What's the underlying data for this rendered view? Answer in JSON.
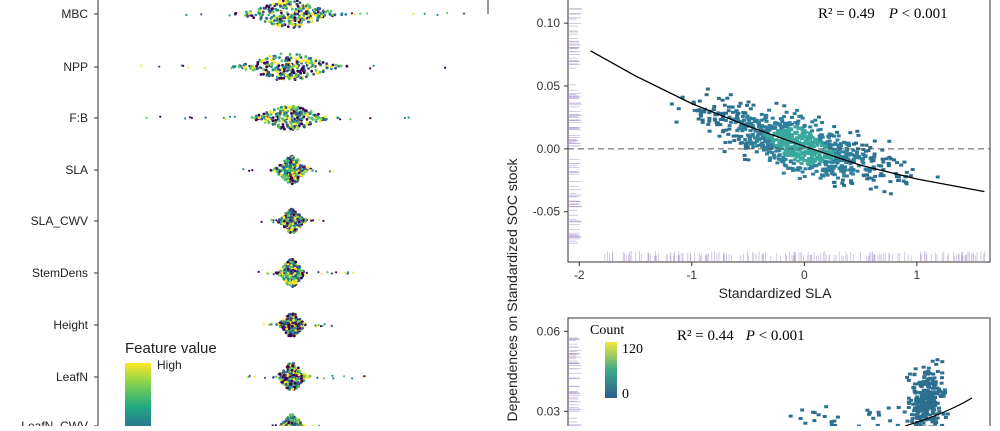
{
  "colors": {
    "viridis": [
      "#440154",
      "#3b528b",
      "#21908d",
      "#5dc863",
      "#fde725"
    ],
    "hex_fill": "#2d6f8e",
    "rug": "#a58fc7",
    "axis": "#333333"
  },
  "left_panel": {
    "features": [
      "MBC",
      "NPP",
      "F:B",
      "SLA",
      "SLA_CWV",
      "StemDens",
      "Height",
      "LeafN",
      "LeafN_CWV"
    ],
    "legend": {
      "title": "Feature value",
      "high": "High"
    }
  },
  "chart_data": [
    {
      "type": "scatter",
      "title": "",
      "xlabel": "Standardized SLA",
      "ylabel": "",
      "xlim": [
        -2.1,
        1.65
      ],
      "ylim": [
        -0.09,
        0.12
      ],
      "x_ticks": [
        "-2",
        "-1",
        "0",
        "1"
      ],
      "y_ticks": [
        "0.10",
        "0.05",
        "0.00",
        "-0.05"
      ],
      "annotation": {
        "r2": "R² = 0.49",
        "p": "P",
        "p_rest": " < 0.001"
      },
      "fit": {
        "x": [
          -1.9,
          -1.5,
          -1.0,
          -0.5,
          0.0,
          0.5,
          1.0,
          1.6
        ],
        "y": [
          0.078,
          0.058,
          0.036,
          0.018,
          0.002,
          -0.013,
          -0.024,
          -0.034
        ]
      },
      "reference_line_y": 0
    },
    {
      "type": "scatter",
      "title": "",
      "xlabel": "",
      "ylabel": "Dependences on Standardized SOC stock",
      "ylim": [
        0.02,
        0.065
      ],
      "y_ticks": [
        "0.06",
        "0.03"
      ],
      "annotation": {
        "r2": "R² = 0.44",
        "p": "P",
        "p_rest": " < 0.001"
      },
      "legend": {
        "title": "Count",
        "max": "120",
        "min": "0"
      }
    }
  ]
}
